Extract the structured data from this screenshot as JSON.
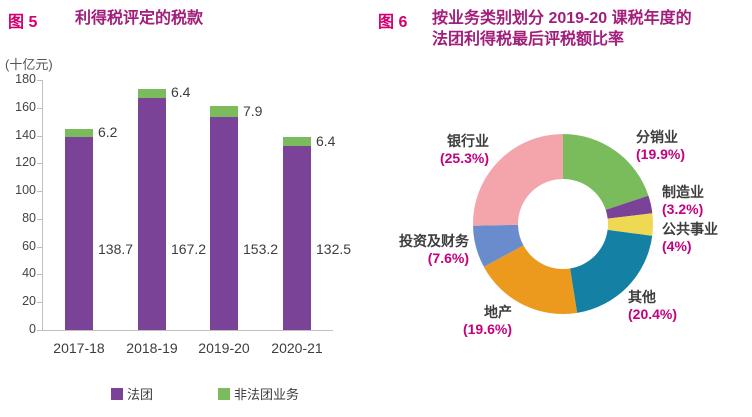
{
  "colors": {
    "figure_label_magenta": "#d4006e",
    "title_magenta": "#a21e7b",
    "percent_magenta": "#c4007e",
    "axis_gray": "#bfbfbf",
    "text_dark": "#3d3d3d"
  },
  "fig5": {
    "figure_label": "图 5",
    "title": "利得税评定的税款",
    "unit_label": "(十亿元)",
    "legend": [
      {
        "id": "corporations",
        "label": "法团",
        "color": "#7b4397"
      },
      {
        "id": "unincorporated",
        "label": "非法团业务",
        "color": "#7abc5b"
      }
    ]
  },
  "fig6": {
    "figure_label": "图 6",
    "title_line1": "按业务类别划分 2019-20 课税年度的",
    "title_line2": "法团利得税最后评税额比率"
  },
  "chart_data": [
    {
      "type": "bar",
      "stacked": true,
      "title": "利得税评定的税款",
      "ylabel": "(十亿元)",
      "ylim": [
        0,
        180
      ],
      "ytick_step": 20,
      "grid": false,
      "legend_position": "bottom",
      "categories": [
        "2017-18",
        "2018-19",
        "2019-20",
        "2020-21"
      ],
      "series": [
        {
          "id": "corporations",
          "name": "法团",
          "color": "#7b4397",
          "values": [
            138.7,
            167.2,
            153.2,
            132.5
          ]
        },
        {
          "id": "unincorporated",
          "name": "非法团业务",
          "color": "#7abc5b",
          "values": [
            6.2,
            6.4,
            7.9,
            6.4
          ]
        }
      ]
    },
    {
      "type": "pie",
      "donut": true,
      "title": "按业务类别划分 2019-20 课税年度的法团利得税最后评税额比率",
      "start_angle_deg": 0,
      "direction": "clockwise",
      "slices": [
        {
          "id": "distribution",
          "label": "分销业",
          "percent_label": "(19.9%)",
          "value": 19.9,
          "color": "#7abc5b"
        },
        {
          "id": "manufacturing",
          "label": "制造业",
          "percent_label": "(3.2%)",
          "value": 3.2,
          "color": "#7b4397"
        },
        {
          "id": "utilities",
          "label": "公共事业",
          "percent_label": "(4%)",
          "value": 4,
          "color": "#efd952"
        },
        {
          "id": "others",
          "label": "其他",
          "percent_label": "(20.4%)",
          "value": 20.4,
          "color": "#1380a4"
        },
        {
          "id": "property",
          "label": "地产",
          "percent_label": "(19.6%)",
          "value": 19.6,
          "color": "#ec9a1e"
        },
        {
          "id": "investment-finance",
          "label": "投资及财务",
          "percent_label": "(7.6%)",
          "value": 7.6,
          "color": "#6a8ccc"
        },
        {
          "id": "banking",
          "label": "银行业",
          "percent_label": "(25.3%)",
          "value": 25.3,
          "color": "#f3a5ab"
        }
      ]
    }
  ]
}
